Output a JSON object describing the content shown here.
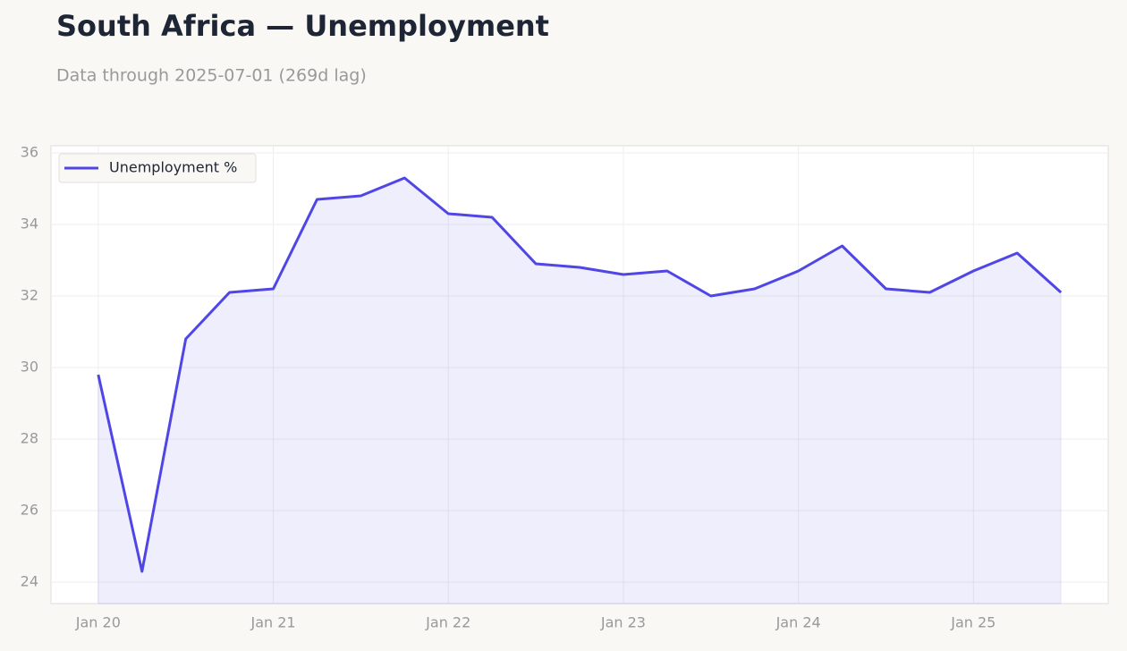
{
  "chart_data": {
    "type": "line",
    "title": "South Africa — Unemployment",
    "subtitle": "Data through 2025-07-01 (269d lag)",
    "categories": [
      "Jan 20",
      null,
      null,
      null,
      "Jan 21",
      null,
      null,
      null,
      "Jan 22",
      null,
      null,
      null,
      "Jan 23",
      null,
      null,
      null,
      "Jan 24",
      null,
      null,
      null,
      "Jan 25",
      null,
      null
    ],
    "series": [
      {
        "name": "Unemployment %",
        "color": "#4f46e5",
        "values": [
          29.8,
          24.3,
          30.8,
          32.1,
          32.2,
          34.7,
          34.8,
          35.3,
          34.3,
          34.2,
          32.9,
          32.8,
          32.6,
          32.7,
          32.0,
          32.2,
          32.7,
          33.4,
          32.2,
          32.1,
          32.7,
          33.2,
          32.1
        ]
      }
    ],
    "ylim": [
      23.4,
      36.2
    ],
    "yticks": [
      24,
      26,
      28,
      30,
      32,
      34,
      36
    ],
    "grid": true,
    "area": true,
    "legend": "upper left"
  }
}
